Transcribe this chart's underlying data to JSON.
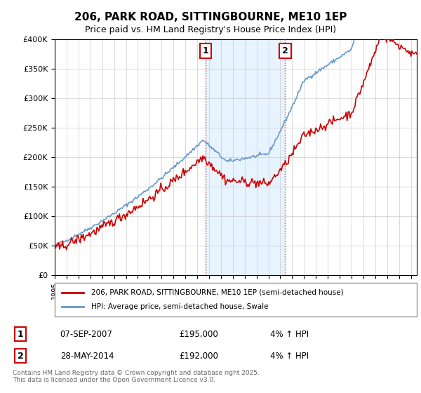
{
  "title": "206, PARK ROAD, SITTINGBOURNE, ME10 1EP",
  "subtitle": "Price paid vs. HM Land Registry's House Price Index (HPI)",
  "ylabel_ticks": [
    "£0",
    "£50K",
    "£100K",
    "£150K",
    "£200K",
    "£250K",
    "£300K",
    "£350K",
    "£400K"
  ],
  "ylim": [
    0,
    400000
  ],
  "xlim_start": 1995.0,
  "xlim_end": 2025.5,
  "sale1_date": 2007.69,
  "sale1_price": 195000,
  "sale1_label": "1",
  "sale1_date_str": "07-SEP-2007",
  "sale1_hpi_pct": "4% ↑ HPI",
  "sale2_date": 2014.41,
  "sale2_price": 192000,
  "sale2_label": "2",
  "sale2_date_str": "28-MAY-2014",
  "sale2_hpi_pct": "4% ↑ HPI",
  "legend_line1": "206, PARK ROAD, SITTINGBOURNE, ME10 1EP (semi-detached house)",
  "legend_line2": "HPI: Average price, semi-detached house, Swale",
  "footer": "Contains HM Land Registry data © Crown copyright and database right 2025.\nThis data is licensed under the Open Government Licence v3.0.",
  "line_color_price": "#cc0000",
  "line_color_hpi": "#6699cc",
  "shade_color": "#ddeeff",
  "grid_color": "#cccccc",
  "bg_color": "#ffffff",
  "annotation_box_color": "#cc0000"
}
